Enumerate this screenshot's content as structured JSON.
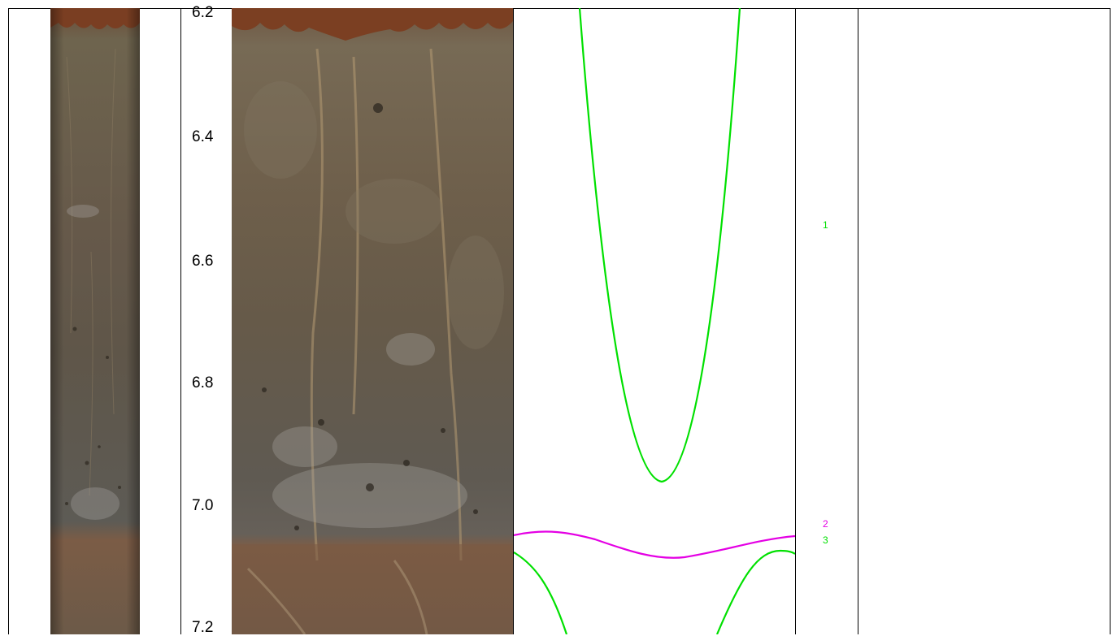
{
  "depth_axis": {
    "labels": [
      "6.2",
      "6.4",
      "6.6",
      "6.8",
      "7.0",
      "7.2"
    ]
  },
  "core_images": {
    "narrow": "core-photo-narrow",
    "wide": "core-photo-wide",
    "colors": {
      "top_rubble": "#7a4a2e",
      "upper_mud": "#6f6250",
      "middle": "#6a5d4a",
      "lower_grey": "#5e5a50",
      "bottom_brown": "#7b5a44"
    }
  },
  "curves": {
    "colors": {
      "green": "#00e000",
      "magenta": "#e400e4"
    }
  },
  "tie_points": [
    {
      "id": "1",
      "color": "#00e000"
    },
    {
      "id": "2",
      "color": "#e400e4"
    },
    {
      "id": "3",
      "color": "#00e000"
    }
  ]
}
